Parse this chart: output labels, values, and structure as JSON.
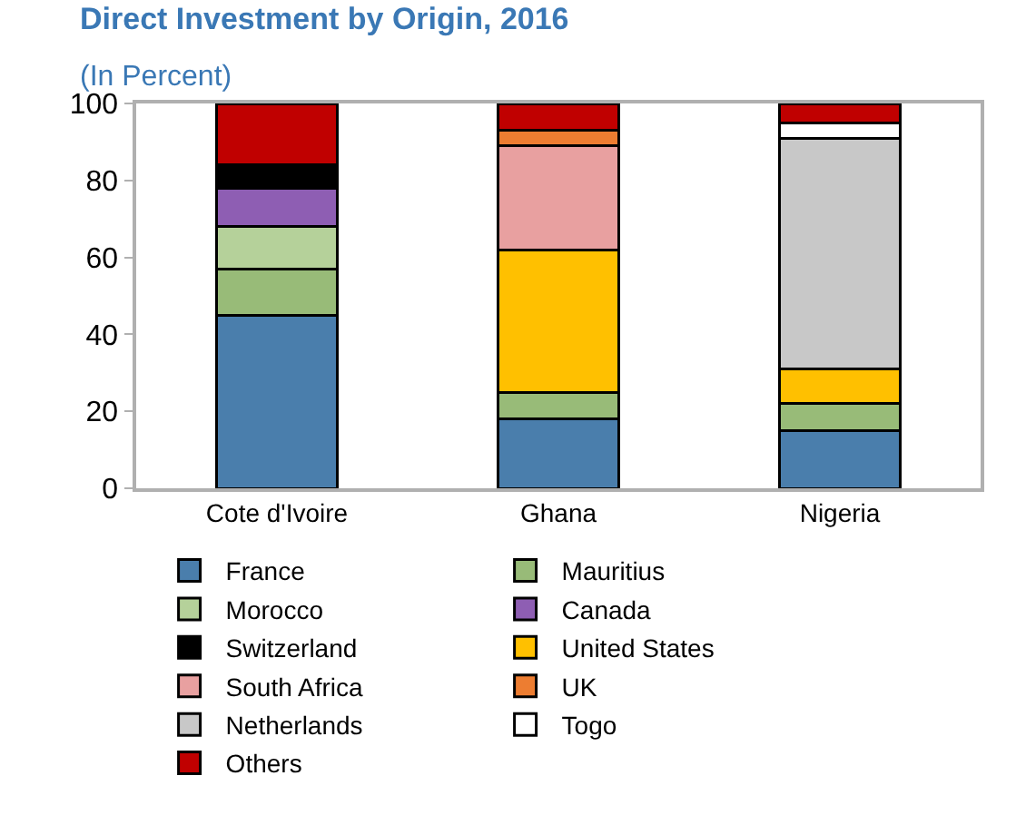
{
  "chart_data": {
    "type": "bar",
    "title": "Direct Investment by Origin, 2016",
    "subtitle": "(In Percent)",
    "categories": [
      "Cote d'Ivoire",
      "Ghana",
      "Nigeria"
    ],
    "stacked": true,
    "ylim": [
      0,
      100
    ],
    "yticks": [
      0,
      20,
      40,
      60,
      80,
      100
    ],
    "grid": false,
    "legend": "bottom",
    "series": [
      {
        "name": "France",
        "color": "#4a7eac",
        "values": [
          45,
          18,
          15
        ]
      },
      {
        "name": "Mauritius",
        "color": "#98bb78",
        "values": [
          12,
          7,
          7
        ]
      },
      {
        "name": "Morocco",
        "color": "#b5d19a",
        "values": [
          11,
          null,
          null
        ]
      },
      {
        "name": "Canada",
        "color": "#8e5eb3",
        "values": [
          10,
          null,
          null
        ]
      },
      {
        "name": "Switzerland",
        "color": "#000000",
        "values": [
          6,
          null,
          null
        ]
      },
      {
        "name": "United States",
        "color": "#ffc000",
        "values": [
          null,
          37,
          9
        ]
      },
      {
        "name": "South Africa",
        "color": "#e8a0a0",
        "values": [
          null,
          27,
          null
        ]
      },
      {
        "name": "UK",
        "color": "#ed7d31",
        "values": [
          null,
          4,
          null
        ]
      },
      {
        "name": "Netherlands",
        "color": "#c8c8c8",
        "values": [
          null,
          null,
          60
        ]
      },
      {
        "name": "Togo",
        "color": "#ffffff",
        "values": [
          null,
          null,
          4
        ]
      },
      {
        "name": "Others",
        "color": "#c00000",
        "values": [
          16,
          7,
          5
        ]
      }
    ]
  }
}
